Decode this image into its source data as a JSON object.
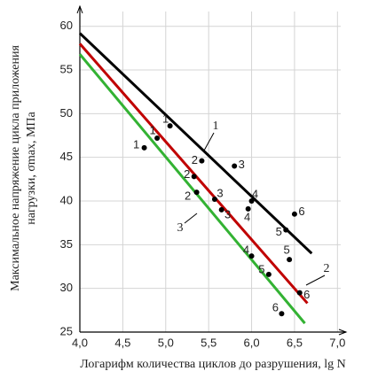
{
  "chart_data": {
    "type": "line",
    "y_label": [
      "Максимальное напряжение цикла приложения",
      "нагрузки, σmax, МПа"
    ],
    "x_label": "Логарифм количества циклов до разрушения, lg N",
    "xlim": [
      4,
      7.1
    ],
    "ylim": [
      25,
      62.3
    ],
    "xticks": [
      {
        "value": 4,
        "label": "4,0"
      },
      {
        "value": 4.5,
        "label": "4,5"
      },
      {
        "value": 5,
        "label": "5,0"
      },
      {
        "value": 5.5,
        "label": "5,5"
      },
      {
        "value": 6,
        "label": "6,0"
      },
      {
        "value": 6.5,
        "label": "6,5"
      },
      {
        "value": 7,
        "label": "7,0"
      }
    ],
    "yticks": [
      25,
      30,
      35,
      40,
      45,
      50,
      55,
      60
    ],
    "grid": true,
    "series": [
      {
        "name": "1",
        "color": "#000000",
        "x": [
          4.0,
          6.7
        ],
        "values": [
          59.2,
          34.0
        ]
      },
      {
        "name": "2",
        "color": "#c00000",
        "x": [
          4.0,
          6.65
        ],
        "values": [
          58.0,
          28.3
        ]
      },
      {
        "name": "3",
        "color": "#33b233",
        "x": [
          4.0,
          6.62
        ],
        "values": [
          56.8,
          26.0
        ]
      }
    ],
    "points": {
      "color": "#000000",
      "x": [
        4.75,
        4.9,
        5.05,
        5.42,
        5.33,
        5.36,
        5.8,
        5.57,
        5.65,
        6.0,
        5.96,
        6.0,
        6.5,
        6.4,
        6.44,
        6.2,
        6.56,
        6.35
      ],
      "values": [
        46.1,
        47.2,
        48.6,
        44.6,
        42.8,
        41.0,
        44.0,
        40.2,
        39.0,
        40.0,
        39.1,
        33.7,
        38.5,
        36.7,
        33.3,
        31.6,
        29.5,
        27.1
      ],
      "labels": [
        "1",
        "1",
        "1",
        "2",
        "2",
        "2",
        "3",
        "3",
        "3",
        "4",
        "4",
        "4",
        "6",
        "5",
        "5",
        "5",
        "6",
        "6"
      ]
    }
  }
}
